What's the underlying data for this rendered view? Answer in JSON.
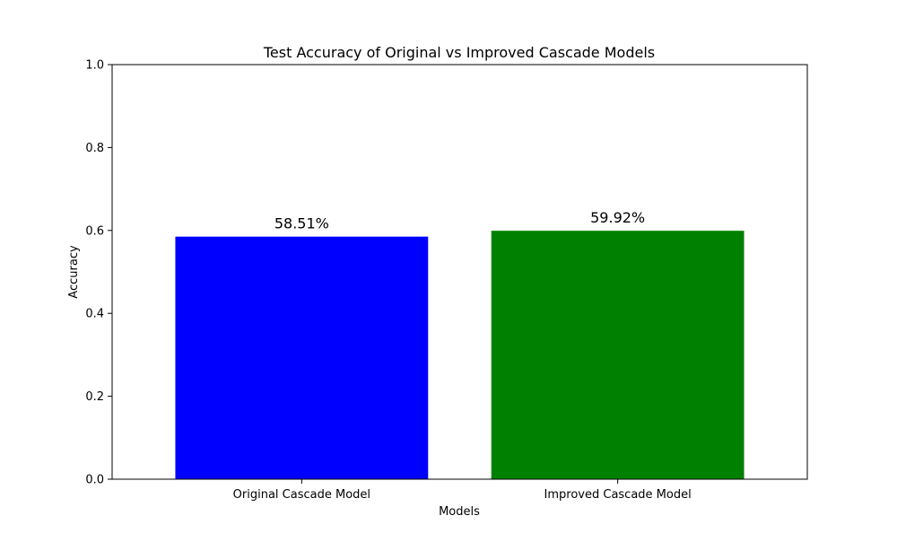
{
  "chart_data": {
    "type": "bar",
    "title": "Test Accuracy of Original vs Improved Cascade Models",
    "xlabel": "Models",
    "ylabel": "Accuracy",
    "categories": [
      "Original Cascade Model",
      "Improved Cascade Model"
    ],
    "values": [
      0.5851,
      0.5992
    ],
    "value_labels": [
      "58.51%",
      "59.92%"
    ],
    "bar_colors": [
      "#0000ff",
      "#008000"
    ],
    "ylim": [
      0,
      1.0
    ],
    "yticks": [
      0.0,
      0.2,
      0.4,
      0.6,
      0.8,
      1.0
    ],
    "ytick_labels": [
      "0.0",
      "0.2",
      "0.4",
      "0.6",
      "0.8",
      "1.0"
    ],
    "grid": false,
    "legend": null
  }
}
